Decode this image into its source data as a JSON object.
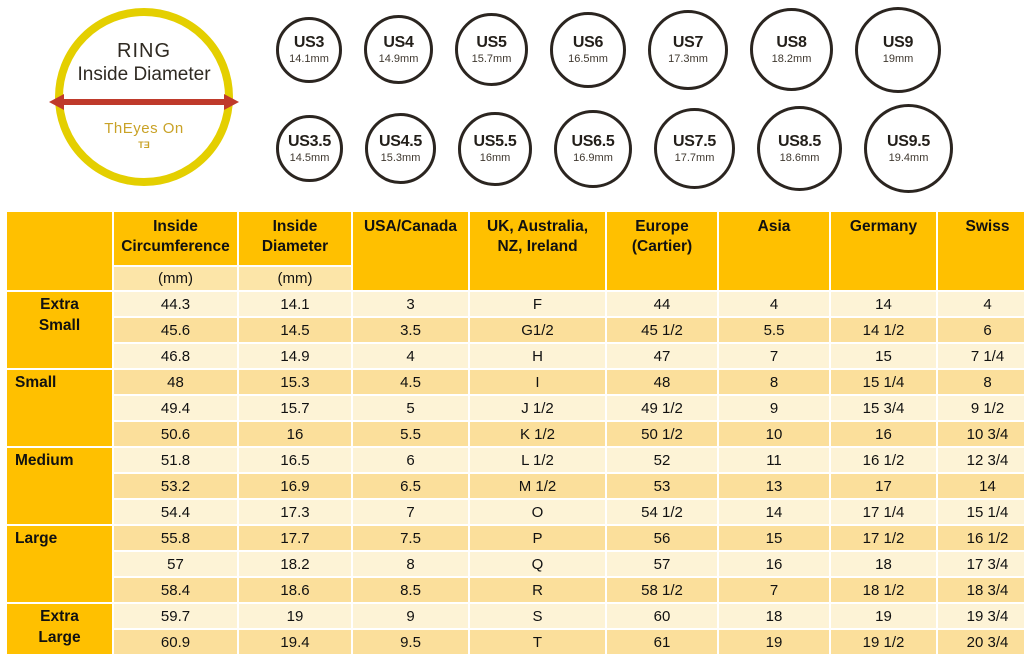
{
  "badge": {
    "title_line1": "RING",
    "title_line2": "Inside Diameter",
    "logo_text": "ThEyes On",
    "logo_mark": "TƎ"
  },
  "ring_sizes": {
    "rows": [
      [
        {
          "label": "US3",
          "mm": "14.1mm"
        },
        {
          "label": "US4",
          "mm": "14.9mm"
        },
        {
          "label": "US5",
          "mm": "15.7mm"
        },
        {
          "label": "US6",
          "mm": "16.5mm"
        },
        {
          "label": "US7",
          "mm": "17.3mm"
        },
        {
          "label": "US8",
          "mm": "18.2mm"
        },
        {
          "label": "US9",
          "mm": "19mm"
        }
      ],
      [
        {
          "label": "US3.5",
          "mm": "14.5mm"
        },
        {
          "label": "US4.5",
          "mm": "15.3mm"
        },
        {
          "label": "US5.5",
          "mm": "16mm"
        },
        {
          "label": "US6.5",
          "mm": "16.9mm"
        },
        {
          "label": "US7.5",
          "mm": "17.7mm"
        },
        {
          "label": "US8.5",
          "mm": "18.6mm"
        },
        {
          "label": "US9.5",
          "mm": "19.4mm"
        }
      ]
    ]
  },
  "chart_data": {
    "type": "table",
    "title": "Ring size conversion chart",
    "columns": [
      "Inside\nCircumference",
      "Inside\nDiameter",
      "USA/Canada",
      "UK, Australia,\nNZ, Ireland",
      "Europe\n(Cartier)",
      "Asia",
      "Germany",
      "Swiss"
    ],
    "sub_headers": [
      "(mm)",
      "(mm)"
    ],
    "groups": [
      {
        "label": "Extra Small",
        "display": "Extra\nSmall",
        "rows": 3,
        "align": "center"
      },
      {
        "label": "Small",
        "display": "Small",
        "rows": 3,
        "align": "left"
      },
      {
        "label": "Medium",
        "display": "Medium",
        "rows": 3,
        "align": "left"
      },
      {
        "label": "Large",
        "display": "Large",
        "rows": 3,
        "align": "left"
      },
      {
        "label": "Extra Large",
        "display": "Extra\nLarge",
        "rows": 2,
        "align": "center"
      }
    ],
    "rows": [
      [
        "44.3",
        "14.1",
        "3",
        "F",
        "44",
        "4",
        "14",
        "4"
      ],
      [
        "45.6",
        "14.5",
        "3.5",
        "G1/2",
        "45 1/2",
        "5.5",
        "14 1/2",
        "6"
      ],
      [
        "46.8",
        "14.9",
        "4",
        "H",
        "47",
        "7",
        "15",
        "7 1/4"
      ],
      [
        "48",
        "15.3",
        "4.5",
        "I",
        "48",
        "8",
        "15 1/4",
        "8"
      ],
      [
        "49.4",
        "15.7",
        "5",
        "J 1/2",
        "49 1/2",
        "9",
        "15 3/4",
        "9 1/2"
      ],
      [
        "50.6",
        "16",
        "5.5",
        "K 1/2",
        "50 1/2",
        "10",
        "16",
        "10 3/4"
      ],
      [
        "51.8",
        "16.5",
        "6",
        "L 1/2",
        "52",
        "11",
        "16 1/2",
        "12 3/4"
      ],
      [
        "53.2",
        "16.9",
        "6.5",
        "M 1/2",
        "53",
        "13",
        "17",
        "14"
      ],
      [
        "54.4",
        "17.3",
        "7",
        "O",
        "54 1/2",
        "14",
        "17 1/4",
        "15 1/4"
      ],
      [
        "55.8",
        "17.7",
        "7.5",
        "P",
        "56",
        "15",
        "17 1/2",
        "16 1/2"
      ],
      [
        "57",
        "18.2",
        "8",
        "Q",
        "57",
        "16",
        "18",
        "17 3/4"
      ],
      [
        "58.4",
        "18.6",
        "8.5",
        "R",
        "58 1/2",
        "7",
        "18 1/2",
        "18 3/4"
      ],
      [
        "59.7",
        "19",
        "9",
        "S",
        "60",
        "18",
        "19",
        "19 3/4"
      ],
      [
        "60.9",
        "19.4",
        "9.5",
        "T",
        "61",
        "19",
        "19 1/2",
        "20 3/4"
      ]
    ]
  },
  "colors": {
    "header_bg": "#ffc000",
    "row_light": "#fdf3d6",
    "row_dark": "#fbdf9b",
    "subheader_bg": "#fce5a8",
    "badge_ring": "#e4cf00",
    "arrow": "#bf3a2b",
    "logo": "#c9a227",
    "circle_border": "#2b2520"
  }
}
